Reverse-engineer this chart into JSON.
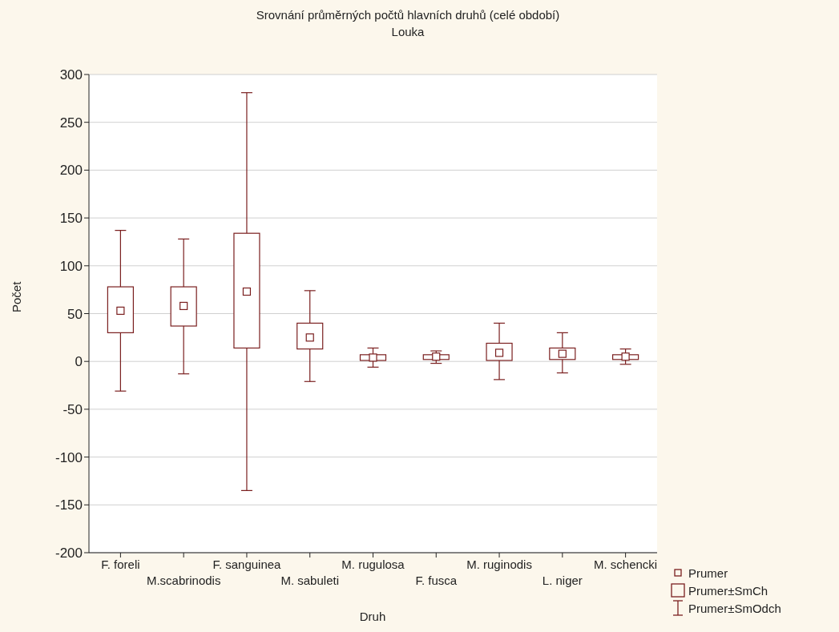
{
  "chart_data": {
    "type": "box",
    "title": "Srovnání průměrných počtů hlavních druhů (celé období)",
    "subtitle": "Louka",
    "xlabel": "Druh",
    "ylabel": "Počet",
    "categories": [
      "F. foreli",
      "M.scabrinodis",
      "F. sanguinea",
      "M. sabuleti",
      "M. rugulosa",
      "F. fusca",
      "M. ruginodis",
      "L. niger",
      "M. schencki"
    ],
    "color": "#7a1f1f",
    "boxes": [
      {
        "low": -31,
        "q1": 30,
        "median": 53,
        "q3": 78,
        "high": 137
      },
      {
        "low": -13,
        "q1": 37,
        "median": 58,
        "q3": 78,
        "high": 128
      },
      {
        "low": -135,
        "q1": 14,
        "median": 73,
        "q3": 134,
        "high": 281
      },
      {
        "low": -21,
        "q1": 13,
        "median": 25,
        "q3": 40,
        "high": 74
      },
      {
        "low": -6,
        "q1": 1,
        "median": 4,
        "q3": 7,
        "high": 14
      },
      {
        "low": -2,
        "q1": 2,
        "median": 5,
        "q3": 7,
        "high": 11
      },
      {
        "low": -19,
        "q1": 1,
        "median": 9,
        "q3": 19,
        "high": 40
      },
      {
        "low": -12,
        "q1": 2,
        "median": 8,
        "q3": 14,
        "high": 30
      },
      {
        "low": -3,
        "q1": 2,
        "median": 5,
        "q3": 7,
        "high": 13
      }
    ],
    "ylim": [
      -200,
      300
    ],
    "yticks": [
      -200,
      -150,
      -100,
      -50,
      0,
      50,
      100,
      150,
      200,
      250,
      300
    ],
    "grid": "y",
    "annotations": [
      "Prumer",
      "Prumer±SmCh",
      "Prumer±SmOdch"
    ]
  }
}
